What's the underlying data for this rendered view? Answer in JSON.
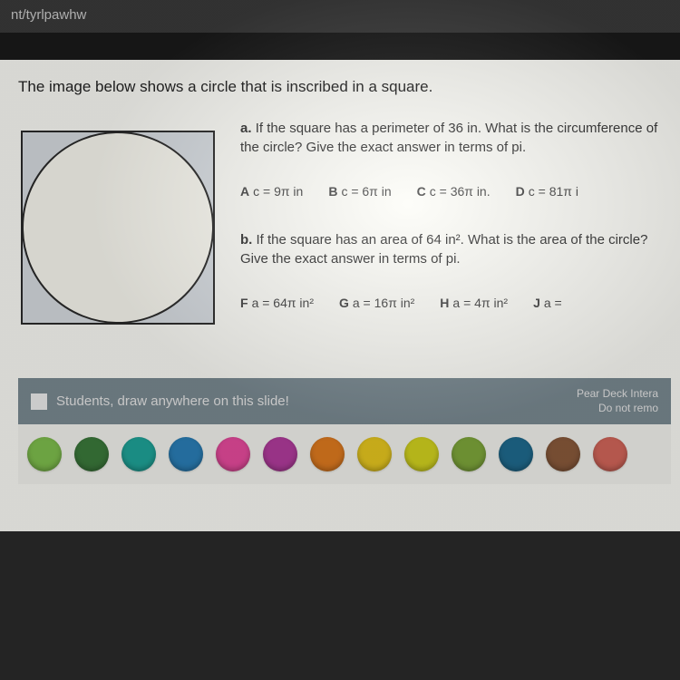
{
  "url_fragment": "nt/tyrlpawhw",
  "prompt": "The image below shows a circle that is inscribed in a square.",
  "figure": {
    "square_size": 220,
    "fill": "#d8dde2",
    "stroke": "#2a2a2a",
    "stroke_width": 2,
    "circle_fill": "#fbfaf2"
  },
  "qa": {
    "label": "a.",
    "text": "If the square has a perimeter of 36 in. What is the circumference of the circle? Give the exact answer in terms of pi.",
    "options": {
      "A": "c = 9π in",
      "B": "c = 6π in",
      "C": "c = 36π in.",
      "D": "c = 81π i"
    }
  },
  "qb": {
    "label": "b.",
    "text": "If the square has an area of 64 in². What is the area of the circle? Give the exact answer in terms of pi.",
    "options": {
      "F": "a = 64π in²",
      "G": "a = 16π in²",
      "H": "a = 4π in²",
      "J": "a = "
    }
  },
  "footer": {
    "instruction": "Students, draw anywhere on this slide!",
    "brand_line1": "Pear Deck Intera",
    "brand_line2": "Do not remo"
  },
  "palette": [
    "#7fbf4d",
    "#3b7a3b",
    "#1fa59a",
    "#2a7fb8",
    "#e84b9e",
    "#b33c9e",
    "#e07b1f",
    "#e8c81f",
    "#d4d41f",
    "#7fa83b",
    "#1f6b8f",
    "#8a5a3b",
    "#d4665a"
  ]
}
